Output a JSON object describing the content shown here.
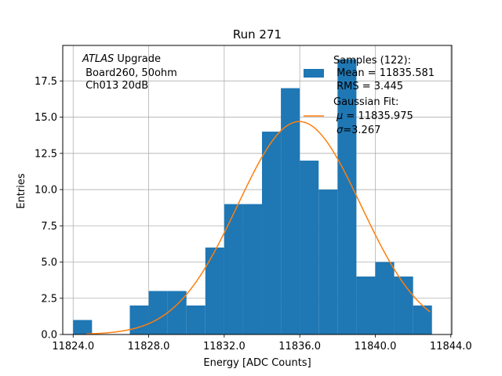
{
  "chart_data": {
    "type": "bar",
    "title": "Run 271",
    "xlabel": "Energy [ADC Counts]",
    "ylabel": "Entries",
    "xlim": [
      11823.45,
      11844.05
    ],
    "ylim": [
      0,
      19.95
    ],
    "grid": true,
    "legend_position": "top-right",
    "xticks": [
      11824.0,
      11828.0,
      11832.0,
      11836.0,
      11840.0,
      11844.0
    ],
    "xtick_labels": [
      "11824.0",
      "11828.0",
      "11832.0",
      "11836.0",
      "11840.0",
      "11844.0"
    ],
    "yticks": [
      0,
      2.5,
      5,
      7.5,
      10,
      12.5,
      15,
      17.5
    ],
    "ytick_labels": [
      "0.0",
      "2.5",
      "5.0",
      "7.5",
      "10.0",
      "12.5",
      "15.0",
      "17.5"
    ],
    "histogram": {
      "bin_edges": [
        11824.0,
        11825.0,
        11826.0,
        11827.0,
        11828.0,
        11829.0,
        11830.0,
        11831.0,
        11832.0,
        11833.0,
        11834.0,
        11835.0,
        11836.0,
        11837.0,
        11838.0,
        11839.0,
        11840.0,
        11841.0,
        11842.0,
        11843.0
      ],
      "counts": [
        1,
        0,
        0,
        2,
        3,
        3,
        2,
        6,
        9,
        9,
        14,
        17,
        12,
        10,
        19,
        4,
        5,
        4,
        2
      ],
      "color": "#1f77b4"
    },
    "fit": {
      "type": "gaussian",
      "mu": 11835.975,
      "sigma": 3.267,
      "amplitude": 14.7,
      "x_range": [
        11824.7,
        11842.9
      ],
      "color": "#ff7f0e"
    },
    "annotation": {
      "line1_italic": "ATLAS",
      "line1_rest": " Upgrade",
      "line2": " Board260, 50ohm",
      "line3": " Ch013 20dB"
    },
    "legend": {
      "samples_line1": "Samples (122):",
      "samples_line2": " Mean = 11835.581",
      "samples_line3": " RMS = 3.445",
      "fit_line1": "Gaussian Fit:",
      "fit_line2_symbol": "μ",
      "fit_line2_rest": " = 11835.975",
      "fit_line3_symbol": "σ",
      "fit_line3_rest": "=3.267"
    }
  }
}
